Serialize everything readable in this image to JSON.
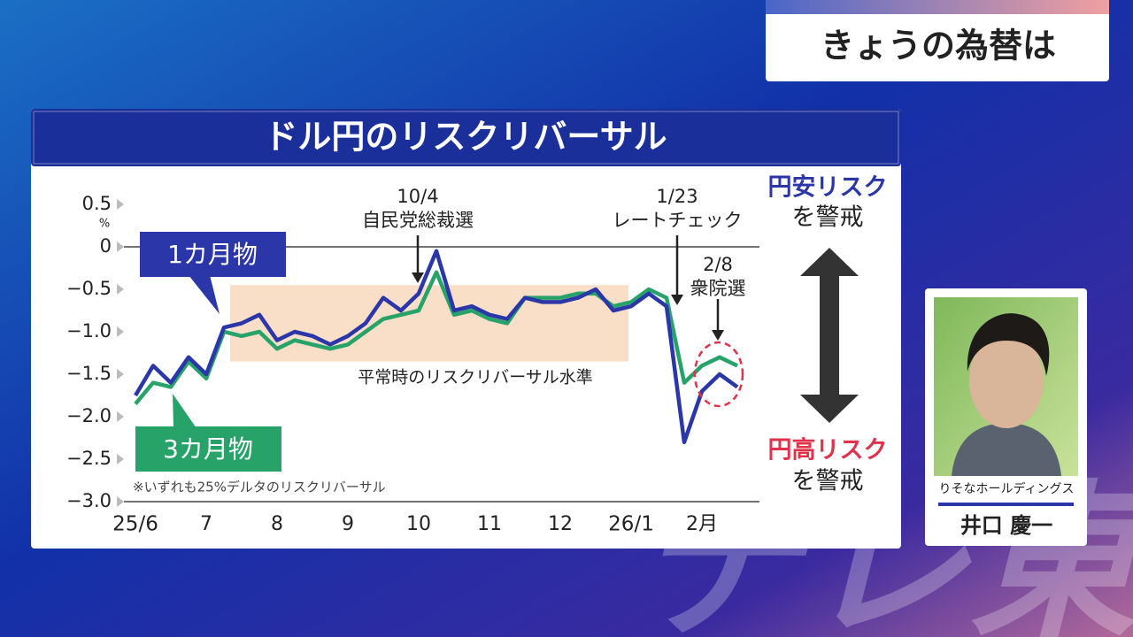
{
  "header": {
    "title": "きょうの為替は"
  },
  "watermark": "テレ東",
  "chart_data": {
    "type": "line",
    "title": "ドル円のリスクリバーサル",
    "y_unit": "%",
    "categories": [
      "25/6",
      null,
      null,
      null,
      "7",
      null,
      null,
      null,
      "8",
      null,
      null,
      null,
      "9",
      null,
      null,
      null,
      "10",
      null,
      null,
      null,
      "11",
      null,
      null,
      null,
      "12",
      null,
      null,
      null,
      "26/1",
      null,
      null,
      null,
      "2月",
      null,
      null
    ],
    "series": [
      {
        "name": "1カ月物",
        "color": "#2b36a8",
        "values": [
          -1.75,
          -1.4,
          -1.6,
          -1.3,
          -1.5,
          -0.95,
          -0.9,
          -0.8,
          -1.1,
          -1.0,
          -1.05,
          -1.15,
          -1.05,
          -0.9,
          -0.6,
          -0.75,
          -0.55,
          -0.05,
          -0.75,
          -0.7,
          -0.8,
          -0.85,
          -0.6,
          -0.65,
          -0.65,
          -0.6,
          -0.5,
          -0.75,
          -0.7,
          -0.55,
          -0.7,
          -2.3,
          -1.7,
          -1.5,
          -1.65
        ]
      },
      {
        "name": "3カ月物",
        "color": "#27a36a",
        "values": [
          -1.85,
          -1.6,
          -1.65,
          -1.35,
          -1.55,
          -1.0,
          -1.05,
          -1.0,
          -1.2,
          -1.1,
          -1.15,
          -1.2,
          -1.15,
          -1.0,
          -0.85,
          -0.8,
          -0.75,
          -0.3,
          -0.8,
          -0.75,
          -0.85,
          -0.9,
          -0.6,
          -0.6,
          -0.6,
          -0.55,
          -0.55,
          -0.7,
          -0.65,
          -0.5,
          -0.6,
          -1.6,
          -1.4,
          -1.3,
          -1.4
        ]
      }
    ],
    "ylim": [
      -3.0,
      0.5
    ],
    "yticks": [
      0.5,
      0,
      {
        "value": -0.5,
        "label": "−0.5"
      },
      {
        "value": -1.0,
        "label": "−1.0"
      },
      {
        "value": -1.5,
        "label": "−1.5"
      },
      {
        "value": -2.0,
        "label": "−2.0"
      },
      {
        "value": -2.5,
        "label": "−2.5"
      },
      {
        "value": -3.0,
        "label": "−3.0"
      }
    ],
    "normal_range": [
      -1.35,
      -0.45
    ],
    "normal_range_label": "平常時のリスクリバーサル水準",
    "note": "※いずれも25%デルタのリスクリバーサル",
    "annotations": [
      {
        "date": "10/4",
        "event": "自民党総裁選"
      },
      {
        "date": "1/23",
        "event": "レートチェック"
      },
      {
        "date": "2/8",
        "event": "衆院選"
      }
    ],
    "side_labels": [
      {
        "risk": "円安リスク",
        "action": "を警戒",
        "color": "#2b36a8"
      },
      {
        "risk": "円高リスク",
        "action": "を警戒",
        "color": "#e0324a"
      }
    ]
  },
  "guest": {
    "company": "りそなホールディングス",
    "name": "井口 慶一"
  }
}
